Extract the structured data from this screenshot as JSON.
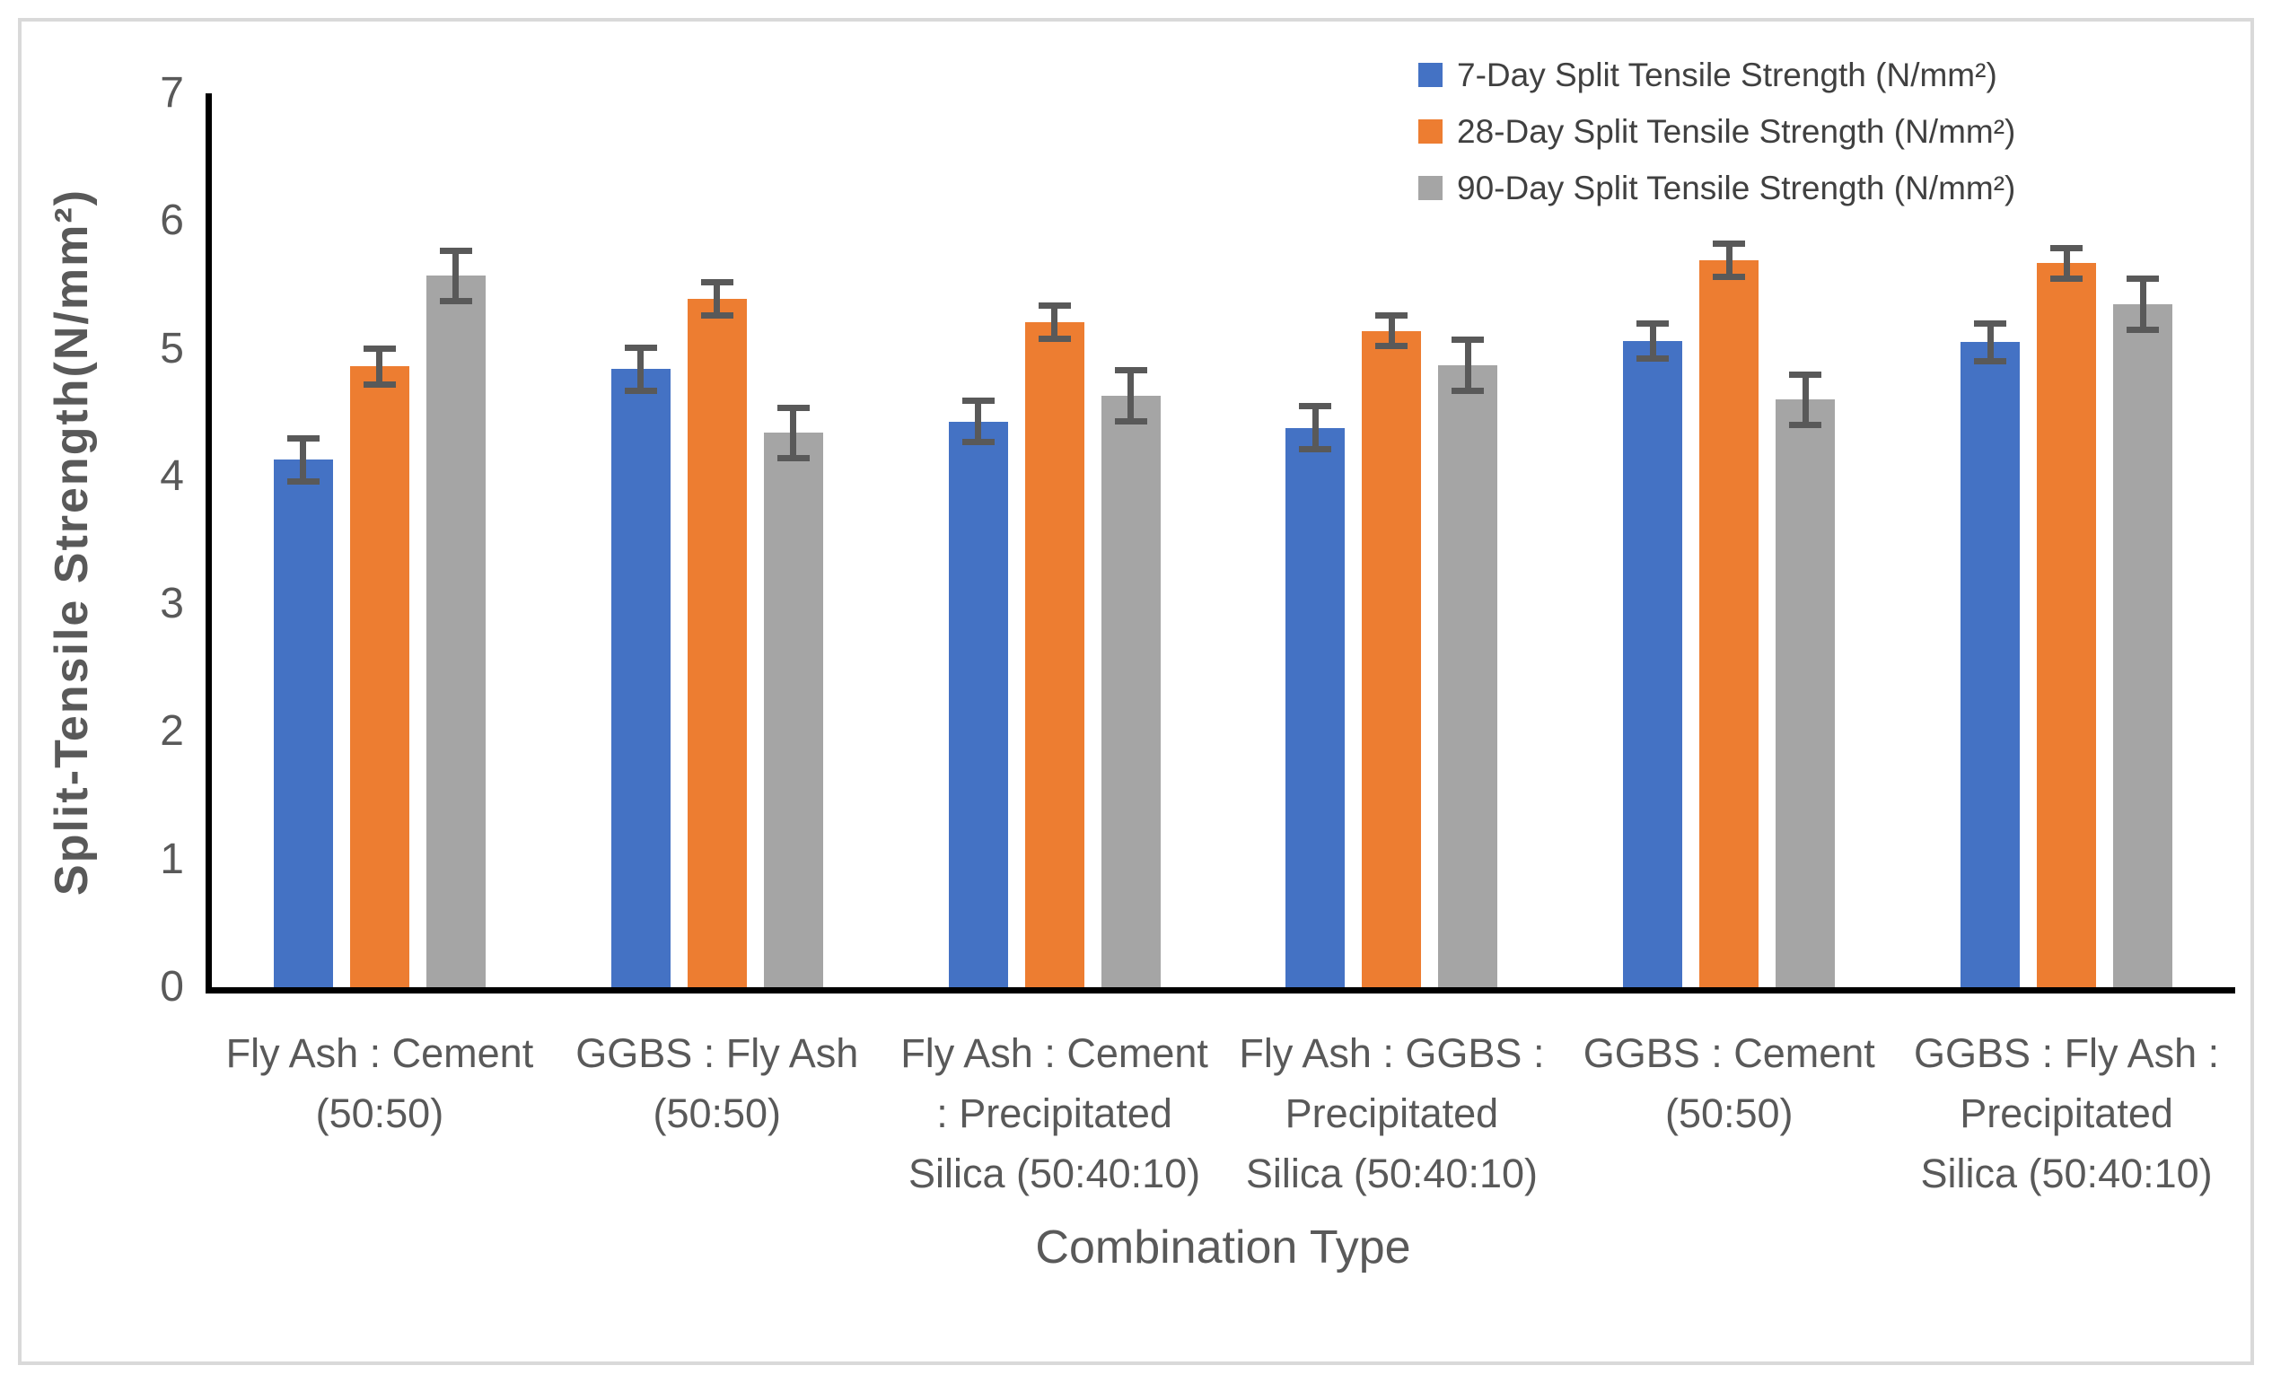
{
  "chart_data": {
    "type": "bar",
    "title": "",
    "xlabel": "Combination Type",
    "ylabel": "Split-Tensile Strength(N/mm²)",
    "ylim": [
      0,
      7
    ],
    "yticks": [
      0,
      1,
      2,
      3,
      4,
      5,
      6,
      7
    ],
    "grid": false,
    "legend_position": "top-right",
    "error_bars": true,
    "error_bar_color": "#595959",
    "axis_color": "#000000",
    "tick_text_color": "#595959",
    "legend_text_color": "#404040",
    "categories": [
      {
        "label": "Fly Ash : Cement (50:50)",
        "lines": [
          "Fly Ash : Cement",
          "(50:50)"
        ]
      },
      {
        "label": "GGBS : Fly Ash (50:50)",
        "lines": [
          "GGBS : Fly Ash",
          "(50:50)"
        ]
      },
      {
        "label": "Fly Ash : Cement : Precipitated Silica (50:40:10)",
        "lines": [
          "Fly Ash : Cement",
          ": Precipitated",
          "Silica (50:40:10)"
        ]
      },
      {
        "label": "Fly Ash : GGBS : Precipitated Silica (50:40:10)",
        "lines": [
          "Fly Ash : GGBS :",
          "Precipitated",
          "Silica (50:40:10)"
        ]
      },
      {
        "label": "GGBS : Cement (50:50)",
        "lines": [
          "GGBS : Cement",
          "(50:50)"
        ]
      },
      {
        "label": "GGBS : Fly Ash : Precipitated Silica (50:40:10)",
        "lines": [
          "GGBS : Fly Ash :",
          "Precipitated",
          "Silica (50:40:10)"
        ]
      }
    ],
    "series": [
      {
        "name": "7-Day Split Tensile Strength (N/mm²)",
        "color": "#4472C4",
        "values": [
          4.13,
          4.84,
          4.43,
          4.38,
          5.06,
          5.05
        ],
        "errors": [
          0.17,
          0.17,
          0.16,
          0.17,
          0.14,
          0.15
        ]
      },
      {
        "name": "28-Day Split Tensile Strength (N/mm²)",
        "color": "#ED7D31",
        "values": [
          4.86,
          5.39,
          5.21,
          5.14,
          5.69,
          5.67
        ],
        "errors": [
          0.14,
          0.13,
          0.13,
          0.12,
          0.13,
          0.12
        ]
      },
      {
        "name": "90-Day Split Tensile Strength (N/mm²)",
        "color": "#A5A5A5",
        "values": [
          5.57,
          4.34,
          4.63,
          4.87,
          4.6,
          5.35
        ],
        "errors": [
          0.2,
          0.2,
          0.2,
          0.2,
          0.2,
          0.2
        ]
      }
    ]
  }
}
